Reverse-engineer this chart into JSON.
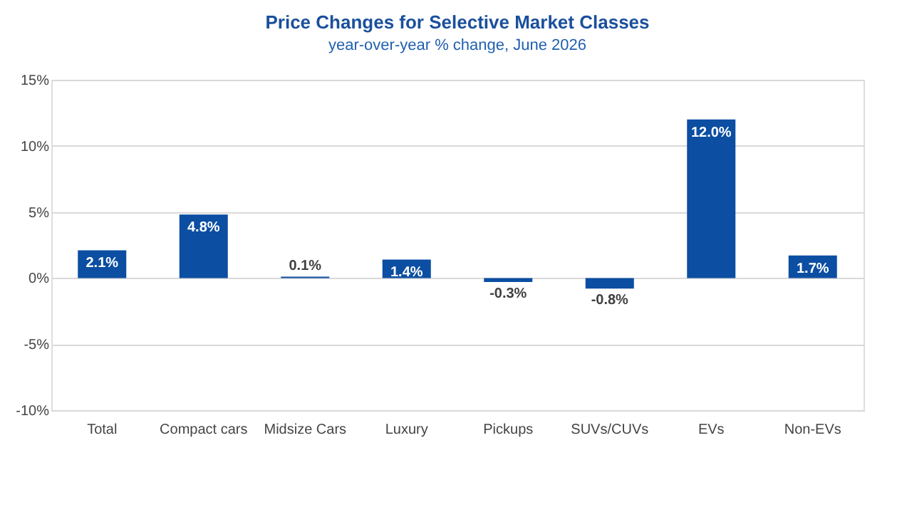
{
  "chart_data": {
    "type": "bar",
    "title": "Price Changes for Selective Market Classes",
    "subtitle": "year-over-year % change, June 2026",
    "categories": [
      "Total",
      "Compact cars",
      "Midsize Cars",
      "Luxury",
      "Pickups",
      "SUVs/CUVs",
      "EVs",
      "Non-EVs"
    ],
    "values": [
      2.1,
      4.8,
      0.1,
      1.4,
      -0.3,
      -0.8,
      12.0,
      1.7
    ],
    "value_labels": [
      "2.1%",
      "4.8%",
      "0.1%",
      "1.4%",
      "-0.3%",
      "-0.8%",
      "12.0%",
      "1.7%"
    ],
    "color": "#0b4ea2",
    "ylim": [
      -10,
      15
    ],
    "yticks": [
      {
        "value": -10,
        "label": "-10%"
      },
      {
        "value": -5,
        "label": "-5%"
      },
      {
        "value": 0,
        "label": "0%"
      },
      {
        "value": 5,
        "label": "5%"
      },
      {
        "value": 10,
        "label": "10%"
      },
      {
        "value": 15,
        "label": "15%"
      }
    ],
    "grid": "y"
  }
}
